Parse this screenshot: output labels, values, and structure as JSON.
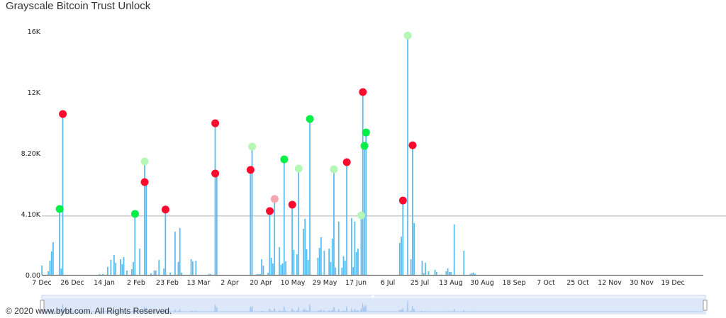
{
  "title": "Grayscale Bitcoin Trust Unlock",
  "copyright": "© 2020 www.bybt.com. All Rights Reserved.",
  "colors": {
    "bar": "#5bbcf0",
    "red": "#ff0a2e",
    "green": "#00f048",
    "lightgreen": "#b5f7b5",
    "pink": "#f7a8ae",
    "reference_line": "#bbbbbb",
    "navigator": "#dce8fa"
  },
  "chart_data": {
    "type": "bar",
    "title": "Grayscale Bitcoin Trust Unlock",
    "x_start": "2019-12-07",
    "x_end": "2021-01-22",
    "ylim": [
      0,
      16400
    ],
    "y_ticks": [
      {
        "value": 0,
        "label": "0.00"
      },
      {
        "value": 4100,
        "label": "4.10K"
      },
      {
        "value": 8200,
        "label": "8.20K"
      },
      {
        "value": 12300,
        "label": "12K"
      },
      {
        "value": 16400,
        "label": "16K"
      }
    ],
    "x_ticks": [
      "7 Dec",
      "26 Dec",
      "14 Jan",
      "2 Feb",
      "23 Feb",
      "13 Mar",
      "2 Apr",
      "20 Apr",
      "10 May",
      "29 May",
      "17 Jun",
      "6 Jul",
      "25 Jul",
      "13 Aug",
      "30 Aug",
      "18 Sep",
      "7 Oct",
      "25 Oct",
      "12 Nov",
      "30 Nov",
      "19 Dec"
    ],
    "reference_line": 3960,
    "grid": false,
    "bars": [
      [
        "2019-12-07",
        620
      ],
      [
        "2019-12-11",
        240
      ],
      [
        "2019-12-12",
        950
      ],
      [
        "2019-12-13",
        1570
      ],
      [
        "2019-12-14",
        2200
      ],
      [
        "2019-12-18",
        4430
      ],
      [
        "2019-12-19",
        420
      ],
      [
        "2019-12-20",
        10820
      ],
      [
        "2020-01-12",
        50
      ],
      [
        "2020-01-14",
        50
      ],
      [
        "2020-01-17",
        530
      ],
      [
        "2020-01-19",
        1000
      ],
      [
        "2020-01-21",
        1330
      ],
      [
        "2020-01-22",
        800
      ],
      [
        "2020-01-25",
        1050
      ],
      [
        "2020-01-26",
        720
      ],
      [
        "2020-01-27",
        1190
      ],
      [
        "2020-01-29",
        290
      ],
      [
        "2020-02-01",
        380
      ],
      [
        "2020-02-02",
        860
      ],
      [
        "2020-02-03",
        4100
      ],
      [
        "2020-02-06",
        1760
      ],
      [
        "2020-02-09",
        7630
      ],
      [
        "2020-02-10",
        6240
      ],
      [
        "2020-02-13",
        100
      ],
      [
        "2020-02-15",
        290
      ],
      [
        "2020-02-16",
        290
      ],
      [
        "2020-02-18",
        1000
      ],
      [
        "2020-02-22",
        4390
      ],
      [
        "2020-02-21",
        420
      ],
      [
        "2020-02-25",
        140
      ],
      [
        "2020-02-28",
        2900
      ],
      [
        "2020-03-01",
        860
      ],
      [
        "2020-03-02",
        3150
      ],
      [
        "2020-03-03",
        150
      ],
      [
        "2020-03-09",
        1050
      ],
      [
        "2020-03-10",
        900
      ],
      [
        "2020-03-12",
        950
      ],
      [
        "2020-03-20",
        60
      ],
      [
        "2020-03-21",
        60
      ],
      [
        "2020-03-24",
        10200
      ],
      [
        "2020-03-25",
        6820
      ],
      [
        "2020-04-15",
        7060
      ],
      [
        "2020-04-16",
        8630
      ],
      [
        "2020-04-19",
        50
      ],
      [
        "2020-04-20",
        50
      ],
      [
        "2020-04-21",
        50
      ],
      [
        "2020-04-22",
        1050
      ],
      [
        "2020-04-23",
        620
      ],
      [
        "2020-04-26",
        140
      ],
      [
        "2020-04-27",
        4290
      ],
      [
        "2020-04-28",
        1140
      ],
      [
        "2020-04-29",
        760
      ],
      [
        "2020-04-30",
        5100
      ],
      [
        "2020-05-03",
        1860
      ],
      [
        "2020-05-04",
        670
      ],
      [
        "2020-05-05",
        760
      ],
      [
        "2020-05-06",
        7770
      ],
      [
        "2020-05-07",
        900
      ],
      [
        "2020-05-11",
        4720
      ],
      [
        "2020-05-12",
        1670
      ],
      [
        "2020-05-14",
        1380
      ],
      [
        "2020-05-15",
        7150
      ],
      [
        "2020-05-18",
        3100
      ],
      [
        "2020-05-19",
        3770
      ],
      [
        "2020-05-20",
        1720
      ],
      [
        "2020-05-21",
        1000
      ],
      [
        "2020-05-22",
        10490
      ],
      [
        "2020-05-27",
        1140
      ],
      [
        "2020-05-28",
        1810
      ],
      [
        "2020-05-29",
        2530
      ],
      [
        "2020-05-31",
        1620
      ],
      [
        "2020-06-03",
        1760
      ],
      [
        "2020-06-04",
        860
      ],
      [
        "2020-06-05",
        2430
      ],
      [
        "2020-06-06",
        7100
      ],
      [
        "2020-06-07",
        480
      ],
      [
        "2020-06-09",
        3580
      ],
      [
        "2020-06-11",
        480
      ],
      [
        "2020-06-12",
        1240
      ],
      [
        "2020-06-13",
        950
      ],
      [
        "2020-06-14",
        7580
      ],
      [
        "2020-06-17",
        3810
      ],
      [
        "2020-06-18",
        520
      ],
      [
        "2020-06-19",
        3580
      ],
      [
        "2020-06-20",
        1530
      ],
      [
        "2020-06-21",
        1760
      ],
      [
        "2020-06-23",
        4000
      ],
      [
        "2020-06-24",
        12300
      ],
      [
        "2020-06-25",
        8680
      ],
      [
        "2020-06-26",
        9580
      ],
      [
        "2020-07-17",
        2150
      ],
      [
        "2020-07-18",
        2570
      ],
      [
        "2020-07-19",
        5000
      ],
      [
        "2020-07-22",
        16110
      ],
      [
        "2020-07-24",
        1050
      ],
      [
        "2020-07-25",
        8720
      ],
      [
        "2020-07-26",
        3480
      ],
      [
        "2020-07-31",
        950
      ],
      [
        "2020-08-01",
        100
      ],
      [
        "2020-08-02",
        810
      ],
      [
        "2020-08-04",
        240
      ],
      [
        "2020-08-08",
        330
      ],
      [
        "2020-08-09",
        190
      ],
      [
        "2020-08-12",
        20
      ],
      [
        "2020-08-15",
        240
      ],
      [
        "2020-08-16",
        430
      ],
      [
        "2020-08-17",
        190
      ],
      [
        "2020-08-18",
        190
      ],
      [
        "2020-08-20",
        3390
      ],
      [
        "2020-08-26",
        1620
      ],
      [
        "2020-08-30",
        60
      ],
      [
        "2020-08-31",
        120
      ],
      [
        "2020-09-01",
        150
      ],
      [
        "2020-09-02",
        60
      ]
    ],
    "markers": [
      {
        "date": "2019-12-18",
        "value": 4430,
        "color": "green"
      },
      {
        "date": "2019-12-20",
        "value": 10820,
        "color": "red"
      },
      {
        "date": "2020-02-03",
        "value": 4100,
        "color": "green"
      },
      {
        "date": "2020-02-09",
        "value": 7630,
        "color": "lightgreen"
      },
      {
        "date": "2020-02-09",
        "value": 6240,
        "color": "red"
      },
      {
        "date": "2020-02-22",
        "value": 4390,
        "color": "red"
      },
      {
        "date": "2020-03-24",
        "value": 10200,
        "color": "red"
      },
      {
        "date": "2020-03-24",
        "value": 6820,
        "color": "red"
      },
      {
        "date": "2020-04-15",
        "value": 7060,
        "color": "red"
      },
      {
        "date": "2020-04-16",
        "value": 8630,
        "color": "lightgreen"
      },
      {
        "date": "2020-04-27",
        "value": 4290,
        "color": "red"
      },
      {
        "date": "2020-04-30",
        "value": 5100,
        "color": "pink"
      },
      {
        "date": "2020-05-06",
        "value": 7770,
        "color": "green"
      },
      {
        "date": "2020-05-11",
        "value": 4720,
        "color": "red"
      },
      {
        "date": "2020-05-15",
        "value": 7150,
        "color": "lightgreen"
      },
      {
        "date": "2020-05-22",
        "value": 10490,
        "color": "green"
      },
      {
        "date": "2020-06-06",
        "value": 7100,
        "color": "lightgreen"
      },
      {
        "date": "2020-06-14",
        "value": 7580,
        "color": "red"
      },
      {
        "date": "2020-06-23",
        "value": 4000,
        "color": "lightgreen"
      },
      {
        "date": "2020-06-24",
        "value": 12300,
        "color": "red"
      },
      {
        "date": "2020-06-25",
        "value": 8680,
        "color": "green"
      },
      {
        "date": "2020-06-26",
        "value": 9580,
        "color": "green"
      },
      {
        "date": "2020-07-19",
        "value": 5000,
        "color": "red"
      },
      {
        "date": "2020-07-22",
        "value": 16110,
        "color": "lightgreen"
      },
      {
        "date": "2020-07-25",
        "value": 8720,
        "color": "red"
      }
    ]
  }
}
